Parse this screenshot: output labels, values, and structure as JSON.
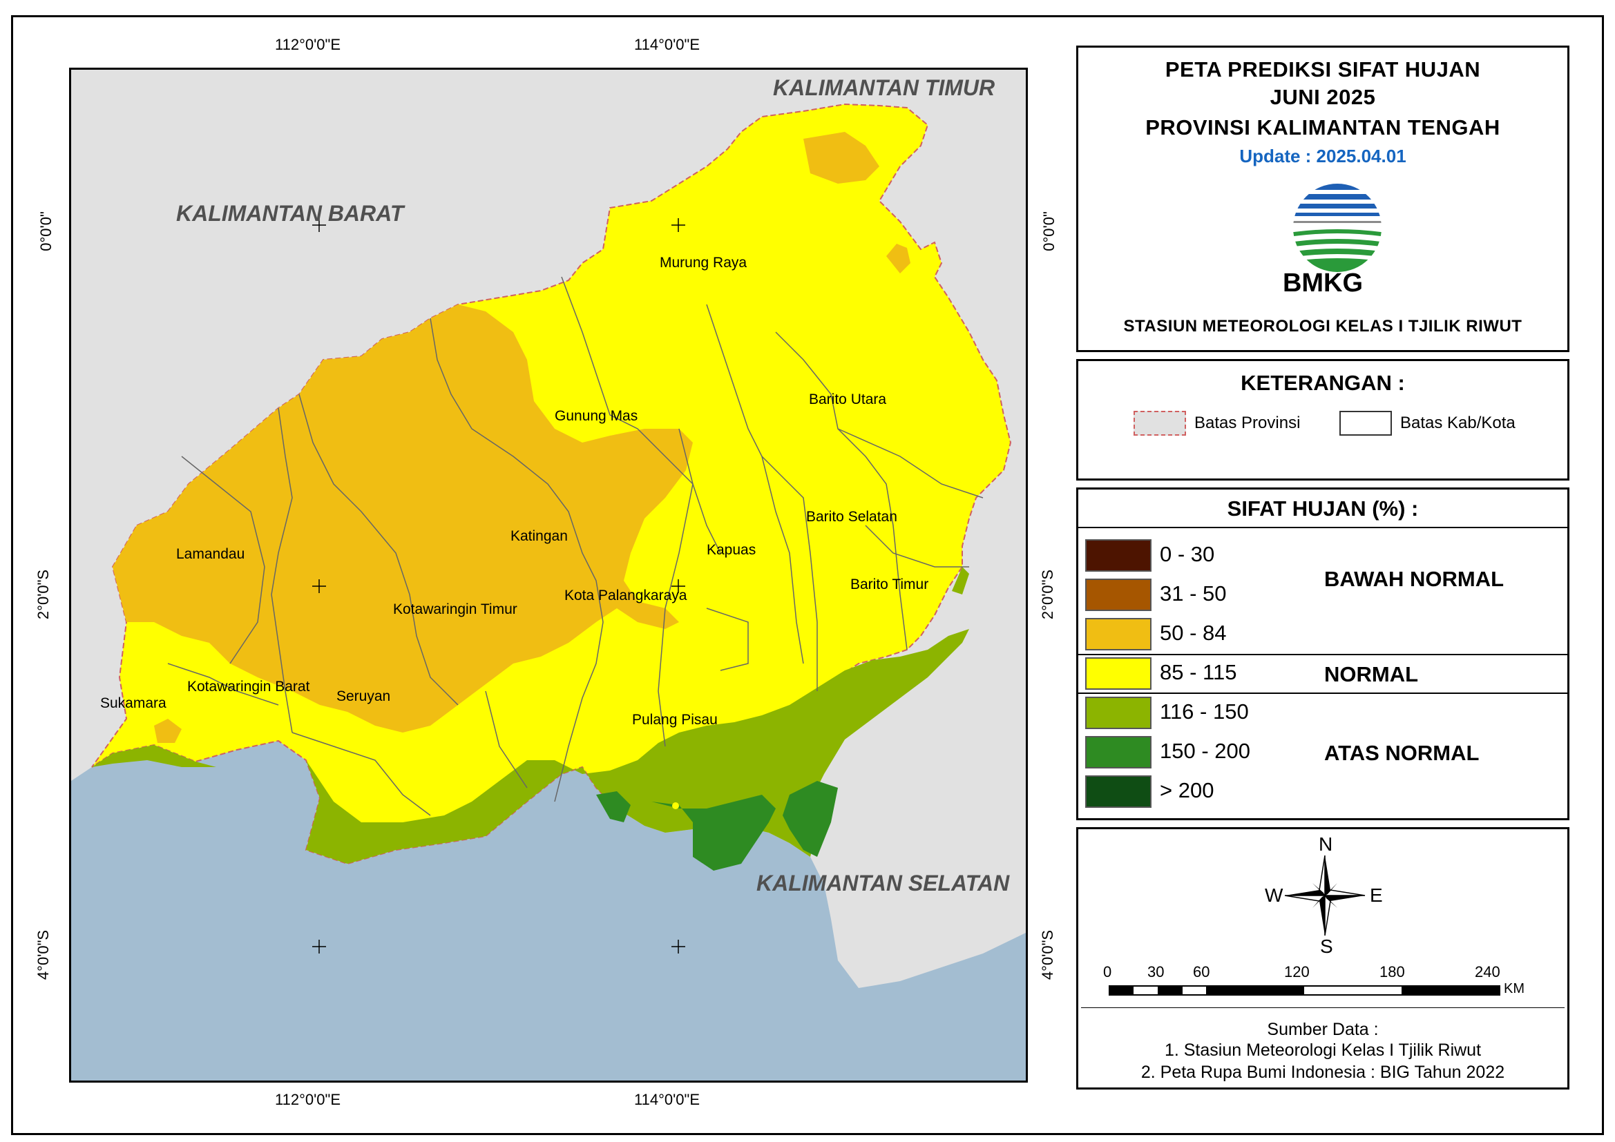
{
  "title": {
    "line1": "PETA PREDIKSI SIFAT HUJAN",
    "line2": "JUNI 2025",
    "line3": "PROVINSI KALIMANTAN TENGAH",
    "update": "Update : 2025.04.01"
  },
  "agency": {
    "name": "BMKG",
    "station": "STASIUN METEOROLOGI KELAS I TJILIK RIWUT"
  },
  "legend": {
    "heading": "KETERANGAN :",
    "province_boundary": "Batas Provinsi",
    "district_boundary": "Batas Kab/Kota"
  },
  "rainfall": {
    "heading": "SIFAT HUJAN (%) :",
    "classes": [
      {
        "range": "0 - 30",
        "color": "#4d1400"
      },
      {
        "range": "31 - 50",
        "color": "#a65600"
      },
      {
        "range": "50 - 84",
        "color": "#f0be13"
      },
      {
        "range": "85 - 115",
        "color": "#ffff00"
      },
      {
        "range": "116 - 150",
        "color": "#8cb400"
      },
      {
        "range": "150 - 200",
        "color": "#2e8b22"
      },
      {
        "range": "> 200",
        "color": "#0f4d14"
      }
    ],
    "categories": {
      "below": "BAWAH NORMAL",
      "normal": "NORMAL",
      "above": "ATAS NORMAL"
    }
  },
  "compass": {
    "n": "N",
    "s": "S",
    "e": "E",
    "w": "W"
  },
  "scale": {
    "ticks": [
      "0",
      "30",
      "60",
      "120",
      "180",
      "240"
    ],
    "unit": "KM"
  },
  "source": {
    "heading": "Sumber Data :",
    "item1": "1. Stasiun Meteorologi Kelas I Tjilik Riwut",
    "item2": "2. Peta Rupa Bumi Indonesia : BIG Tahun 2022"
  },
  "coordinates": {
    "top": [
      "112°0'0\"E",
      "114°0'0\"E"
    ],
    "bottom": [
      "112°0'0\"E",
      "114°0'0\"E"
    ],
    "left": [
      "0°0'0\"",
      "2°0'0\"S",
      "4°0'0\"S"
    ],
    "right": [
      "0°0'0\"",
      "2°0'0\"S",
      "4°0'0\"S"
    ]
  },
  "regions": {
    "kaltim": "KALIMANTAN TIMUR",
    "kalbar": "KALIMANTAN BARAT",
    "kalsel": "KALIMANTAN SELATAN"
  },
  "districts": {
    "murung_raya": "Murung Raya",
    "gunung_mas": "Gunung Mas",
    "barito_utara": "Barito Utara",
    "katingan": "Katingan",
    "kapuas": "Kapuas",
    "barito_selatan": "Barito Selatan",
    "lamandau": "Lamandau",
    "kotawaringin_timur": "Kotawaringin Timur",
    "kota_palangkaraya": "Kota Palangkaraya",
    "barito_timur": "Barito Timur",
    "sukamara": "Sukamara",
    "kotawaringin_barat": "Kotawaringin Barat",
    "seruyan": "Seruyan",
    "pulang_pisau": "Pulang Pisau"
  }
}
